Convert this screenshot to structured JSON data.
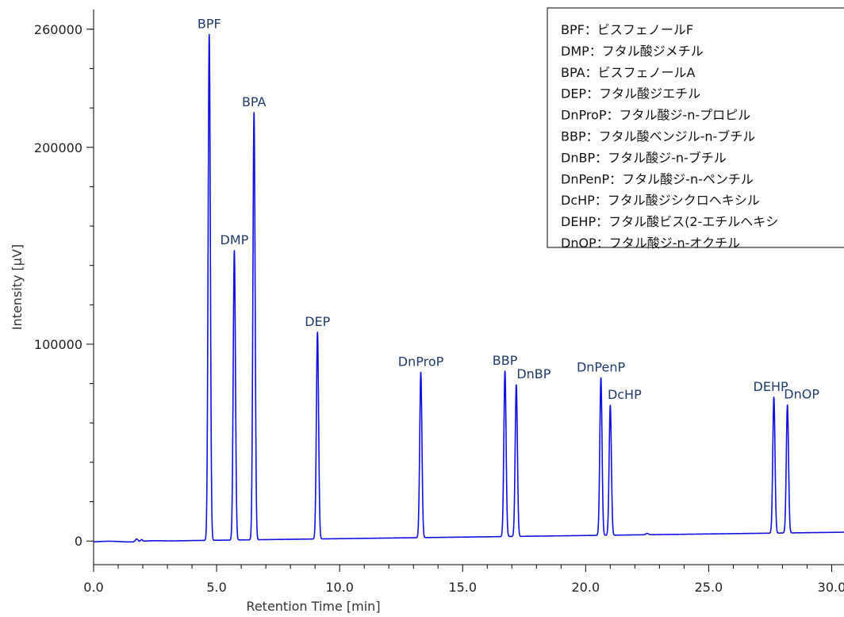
{
  "chart_data": {
    "type": "line",
    "title": "",
    "xlabel": "Retention Time [min]",
    "ylabel": "Intensity [μV]",
    "xlim": [
      0.0,
      30.5
    ],
    "ylim": [
      -12000,
      270000
    ],
    "x_ticks": [
      {
        "value": 0,
        "label": "0.0"
      },
      {
        "value": 5,
        "label": "5.0"
      },
      {
        "value": 10,
        "label": "10.0"
      },
      {
        "value": 15,
        "label": "15.0"
      },
      {
        "value": 20,
        "label": "20.0"
      },
      {
        "value": 25,
        "label": "25.0"
      },
      {
        "value": 30,
        "label": "30.0"
      }
    ],
    "y_ticks": [
      {
        "value": 0,
        "label": "0"
      },
      {
        "value": 100000,
        "label": "100000"
      },
      {
        "value": 200000,
        "label": "200000"
      },
      {
        "value": 260000,
        "label": "260000"
      }
    ],
    "grid": false,
    "line_color": "#1010e0",
    "series": [
      {
        "peaks": [
          {
            "label": "BPF",
            "rt": 4.7,
            "height": 257000
          },
          {
            "label": "DMP",
            "rt": 5.72,
            "height": 147000
          },
          {
            "label": "BPA",
            "rt": 6.52,
            "height": 217000
          },
          {
            "label": "DEP",
            "rt": 9.1,
            "height": 105000
          },
          {
            "label": "DnProP",
            "rt": 13.3,
            "height": 84000
          },
          {
            "label": "BBP",
            "rt": 16.72,
            "height": 84000
          },
          {
            "label": "DnBP",
            "rt": 17.18,
            "height": 77000
          },
          {
            "label": "DnPenP",
            "rt": 20.62,
            "height": 80000
          },
          {
            "label": "DcHP",
            "rt": 21.0,
            "height": 66000
          },
          {
            "label": "DEHP",
            "rt": 27.65,
            "height": 69000
          },
          {
            "label": "DnOP",
            "rt": 28.2,
            "height": 65000
          }
        ]
      }
    ],
    "legend": {
      "placement": "top-right",
      "entries": [
        "BPF：ビスフェノールF",
        "DMP：フタル酸ジメチル",
        "BPA：ビスフェノールA",
        "DEP：フタル酸ジエチル",
        "DnProP：フタル酸ジ-n-プロピル",
        "BBP：フタル酸ベンジル-n-ブチル",
        "DnBP：フタル酸ジ-n-ブチル",
        "DnPenP：フタル酸ジ-n-ペンチル",
        "DcHP：フタル酸ジシクロヘキシル",
        "DEHP：フタル酸ビス(2-エチルヘキシ",
        "DnOP：フタル酸ジ-n-オクチル"
      ]
    }
  }
}
